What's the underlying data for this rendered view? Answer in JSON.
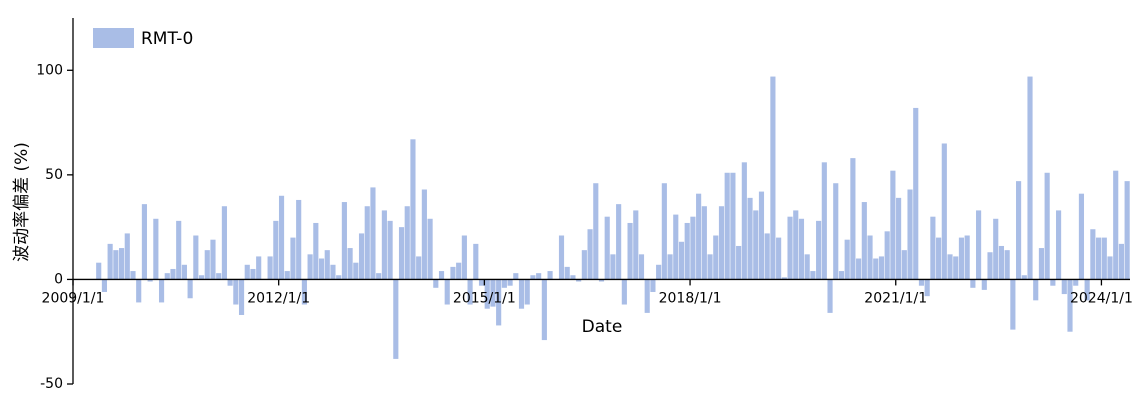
{
  "chart_data": {
    "type": "bar",
    "x_label": "Date",
    "y_label": "波动率偏差 (%)",
    "legend": "upper left",
    "x": [
      "2009-05",
      "2009-06",
      "2009-07",
      "2009-08",
      "2009-09",
      "2009-10",
      "2009-11",
      "2009-12",
      "2010-01",
      "2010-02",
      "2010-03",
      "2010-04",
      "2010-05",
      "2010-06",
      "2010-07",
      "2010-08",
      "2010-09",
      "2010-10",
      "2010-11",
      "2010-12",
      "2011-01",
      "2011-02",
      "2011-03",
      "2011-04",
      "2011-05",
      "2011-06",
      "2011-07",
      "2011-08",
      "2011-09",
      "2011-10",
      "2011-11",
      "2011-12",
      "2012-01",
      "2012-02",
      "2012-03",
      "2012-04",
      "2012-05",
      "2012-06",
      "2012-07",
      "2012-08",
      "2012-09",
      "2012-10",
      "2012-11",
      "2012-12",
      "2013-01",
      "2013-02",
      "2013-03",
      "2013-04",
      "2013-05",
      "2013-06",
      "2013-07",
      "2013-08",
      "2013-09",
      "2013-10",
      "2013-11",
      "2013-12",
      "2014-01",
      "2014-02",
      "2014-03",
      "2014-04",
      "2014-05",
      "2014-06",
      "2014-07",
      "2014-08",
      "2014-09",
      "2014-10",
      "2014-11",
      "2014-12",
      "2015-01",
      "2015-02",
      "2015-03",
      "2015-04",
      "2015-05",
      "2015-06",
      "2015-07",
      "2015-08",
      "2015-09",
      "2015-10",
      "2015-11",
      "2015-12",
      "2016-01",
      "2016-02",
      "2016-03",
      "2016-04",
      "2016-05",
      "2016-06",
      "2016-07",
      "2016-08",
      "2016-09",
      "2016-10",
      "2016-11",
      "2016-12",
      "2017-01",
      "2017-02",
      "2017-03",
      "2017-04",
      "2017-05",
      "2017-06",
      "2017-07",
      "2017-08",
      "2017-09",
      "2017-10",
      "2017-11",
      "2017-12",
      "2018-01",
      "2018-02",
      "2018-03",
      "2018-04",
      "2018-05",
      "2018-06",
      "2018-07",
      "2018-08",
      "2018-09",
      "2018-10",
      "2018-11",
      "2018-12",
      "2019-01",
      "2019-02",
      "2019-03",
      "2019-04",
      "2019-05",
      "2019-06",
      "2019-07",
      "2019-08",
      "2019-09",
      "2019-10",
      "2019-11",
      "2019-12",
      "2020-01",
      "2020-02",
      "2020-03",
      "2020-04",
      "2020-05",
      "2020-06",
      "2020-07",
      "2020-08",
      "2020-09",
      "2020-10",
      "2020-11",
      "2020-12",
      "2021-01",
      "2021-02",
      "2021-03",
      "2021-04",
      "2021-05",
      "2021-06",
      "2021-07",
      "2021-08",
      "2021-09",
      "2021-10",
      "2021-11",
      "2021-12",
      "2022-01",
      "2022-02",
      "2022-03",
      "2022-04",
      "2022-05",
      "2022-06",
      "2022-07",
      "2022-08",
      "2022-09",
      "2022-10",
      "2022-11",
      "2022-12",
      "2023-01",
      "2023-02",
      "2023-03",
      "2023-04",
      "2023-05",
      "2023-06",
      "2023-07",
      "2023-08",
      "2023-09",
      "2023-10",
      "2023-11",
      "2023-12",
      "2024-01",
      "2024-02",
      "2024-03",
      "2024-04",
      "2024-05"
    ],
    "series": [
      {
        "name": "RMT-0",
        "color": "#a9bde6",
        "values": [
          8,
          -6,
          17,
          14,
          15,
          22,
          4,
          -11,
          36,
          -1,
          29,
          -11,
          3,
          5,
          28,
          7,
          -9,
          21,
          2,
          14,
          19,
          3,
          35,
          -3,
          -12,
          -17,
          7,
          5,
          11,
          0,
          11,
          28,
          40,
          4,
          20,
          38,
          -12,
          12,
          27,
          10,
          14,
          7,
          2,
          37,
          15,
          8,
          22,
          35,
          44,
          3,
          33,
          28,
          -38,
          25,
          35,
          67,
          11,
          43,
          29,
          -4,
          4,
          -12,
          6,
          8,
          21,
          -12,
          17,
          -3,
          -14,
          -13,
          -22,
          -4,
          -3,
          3,
          -14,
          -12,
          2,
          3,
          -29,
          4,
          0,
          21,
          6,
          2,
          -1,
          14,
          24,
          46,
          -1,
          30,
          12,
          36,
          -12,
          27,
          33,
          12,
          -16,
          -6,
          7,
          46,
          12,
          31,
          18,
          27,
          30,
          41,
          35,
          12,
          21,
          35,
          51,
          51,
          16,
          56,
          39,
          33,
          42,
          22,
          97,
          20,
          1,
          30,
          33,
          29,
          12,
          4,
          28,
          56,
          -16,
          46,
          4,
          19,
          58,
          10,
          37,
          21,
          10,
          11,
          23,
          52,
          39,
          14,
          43,
          82,
          -3,
          -8,
          30,
          20,
          65,
          12,
          11,
          20,
          21,
          -4,
          33,
          -5,
          13,
          29,
          16,
          14,
          -24,
          47,
          2,
          97,
          -10,
          15,
          51,
          -3,
          33,
          -7,
          -25,
          -3,
          41,
          -10,
          24,
          20,
          20,
          11,
          52,
          17,
          47
        ]
      }
    ],
    "xlim": [
      "2009-01-01",
      "2024-06-01"
    ],
    "xticks": [
      {
        "value": "2009-01-01",
        "label": "2009/1/1"
      },
      {
        "value": "2012-01-01",
        "label": "2012/1/1"
      },
      {
        "value": "2015-01-01",
        "label": "2015/1/1"
      },
      {
        "value": "2018-01-01",
        "label": "2018/1/1"
      },
      {
        "value": "2021-01-01",
        "label": "2021/1/1"
      },
      {
        "value": "2024-01-01",
        "label": "2024/1/1"
      }
    ],
    "ylim": [
      -50,
      125
    ],
    "yticks": [
      -50,
      0,
      50,
      100
    ],
    "grid": false
  }
}
